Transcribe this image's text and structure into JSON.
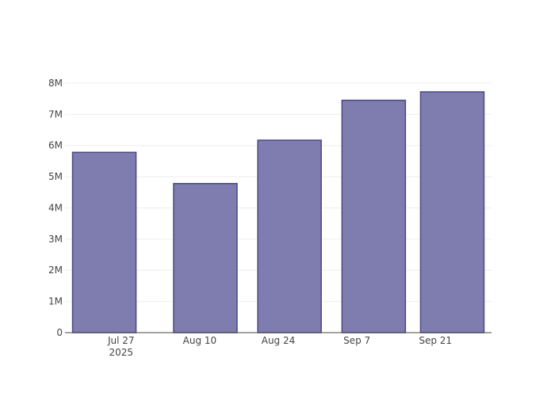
{
  "chart_data": {
    "type": "bar",
    "x": [
      "2025-07-24",
      "2025-08-11",
      "2025-08-26",
      "2025-09-10",
      "2025-09-24"
    ],
    "values": [
      5780000,
      4780000,
      6170000,
      7450000,
      7720000
    ],
    "color": "#7f7db0",
    "edgecolor": "#4b4886",
    "xlim": [
      "2025-07-17",
      "2025-10-01"
    ],
    "xticks": [
      {
        "value": "2025-07-27",
        "label": "Jul 27\n2025"
      },
      {
        "value": "2025-08-10",
        "label": "Aug 10"
      },
      {
        "value": "2025-08-24",
        "label": "Aug 24"
      },
      {
        "value": "2025-09-07",
        "label": "Sep 7"
      },
      {
        "value": "2025-09-21",
        "label": "Sep 21"
      }
    ],
    "ylim": [
      0,
      8100000
    ],
    "yticks": [
      0,
      {
        "value": 1000000,
        "label": "1M"
      },
      {
        "value": 2000000,
        "label": "2M"
      },
      {
        "value": 3000000,
        "label": "3M"
      },
      {
        "value": 4000000,
        "label": "4M"
      },
      {
        "value": 5000000,
        "label": "5M"
      },
      {
        "value": 6000000,
        "label": "6M"
      },
      {
        "value": 7000000,
        "label": "7M"
      },
      {
        "value": 8000000,
        "label": "8M"
      }
    ],
    "grid": true
  }
}
